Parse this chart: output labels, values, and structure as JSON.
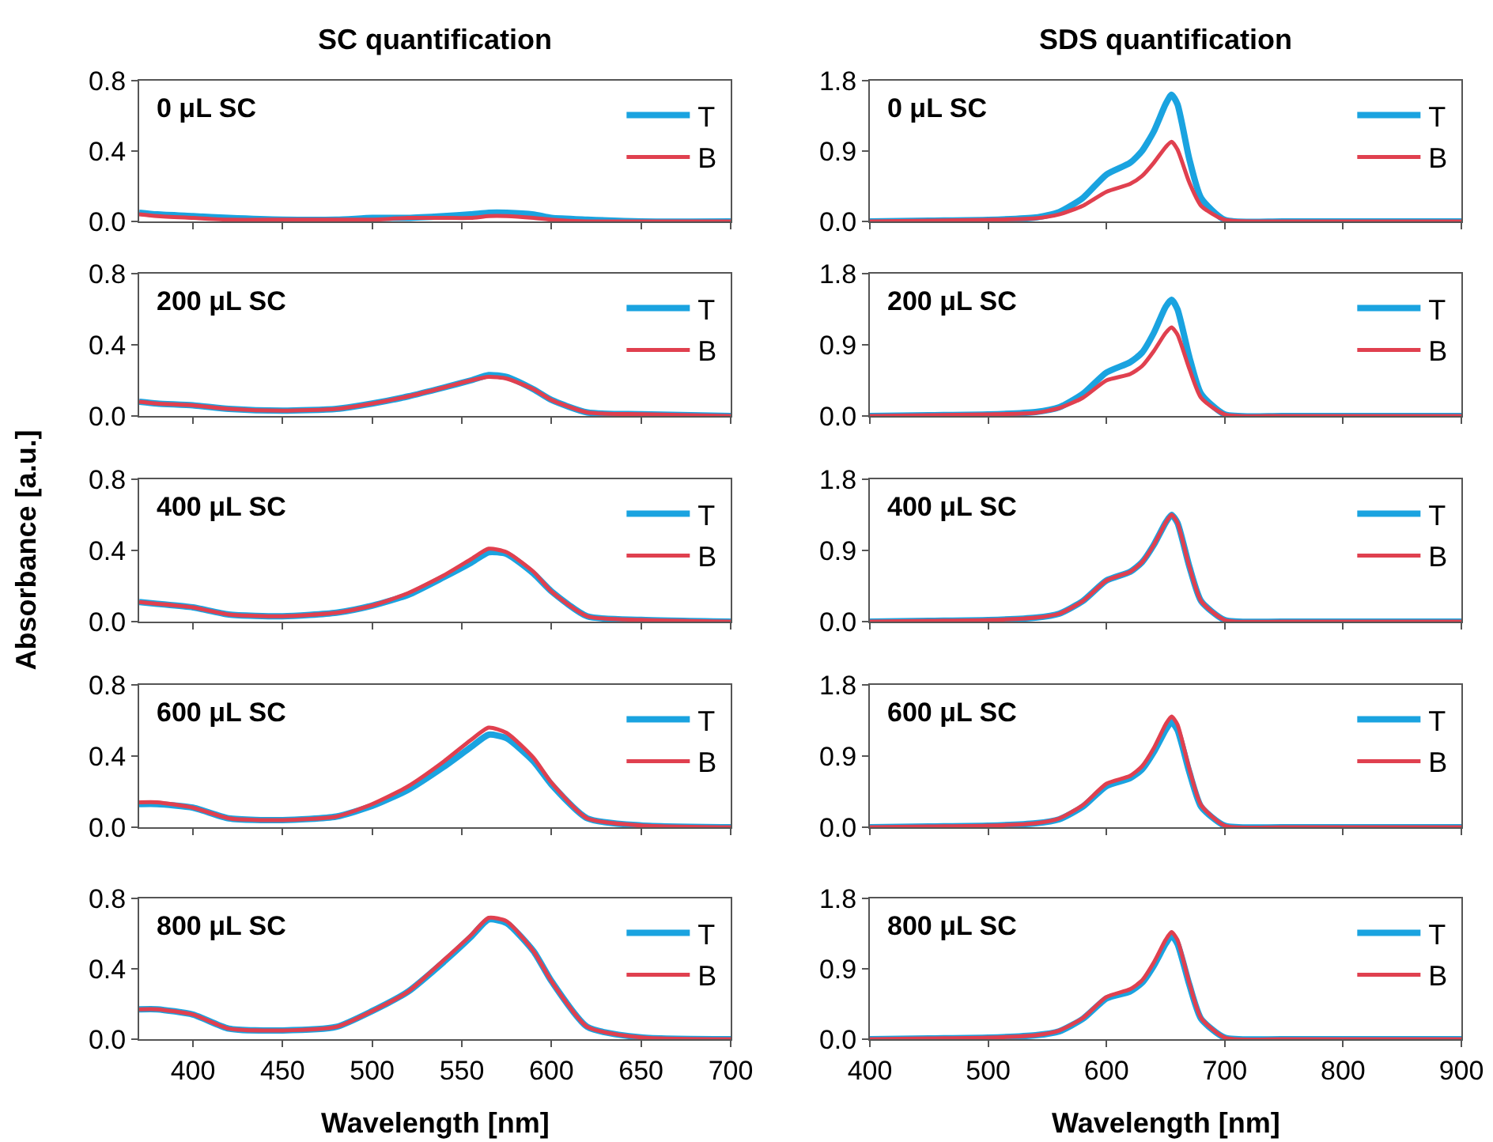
{
  "chart_data": [
    {
      "type": "line",
      "title": "SC quantification",
      "annotations": [
        "0 μL SC"
      ],
      "x": [
        370,
        380,
        400,
        420,
        450,
        480,
        500,
        520,
        540,
        555,
        565,
        575,
        590,
        600,
        620,
        650,
        700
      ],
      "xlim": [
        370,
        700
      ],
      "xticks": [
        400,
        450,
        500,
        550,
        600,
        650,
        700
      ],
      "ylim": [
        0,
        0.8
      ],
      "yticks": [
        {
          "value": 0,
          "label": "0.0"
        },
        {
          "value": 0.4,
          "label": "0.4"
        },
        {
          "value": 0.8,
          "label": "0.8"
        }
      ],
      "tick_labels": "y",
      "legend": "top right",
      "marker": "none",
      "series": [
        {
          "name": "T",
          "color": "#1aa3e0",
          "values": [
            0.05,
            0.04,
            0.03,
            0.02,
            0.01,
            0.01,
            0.02,
            0.02,
            0.03,
            0.04,
            0.05,
            0.05,
            0.04,
            0.02,
            0.01,
            0.0,
            0.0
          ]
        },
        {
          "name": "B",
          "color": "#e0404f",
          "values": [
            0.04,
            0.03,
            0.02,
            0.01,
            0.01,
            0.01,
            0.01,
            0.02,
            0.02,
            0.02,
            0.03,
            0.03,
            0.02,
            0.01,
            0.0,
            0.0,
            0.0
          ]
        }
      ]
    },
    {
      "type": "line",
      "title": "SDS quantification",
      "annotations": [
        "0 μL SC"
      ],
      "x": [
        400,
        450,
        500,
        540,
        560,
        580,
        600,
        620,
        630,
        640,
        650,
        655,
        660,
        670,
        680,
        700,
        750,
        900
      ],
      "xlim": [
        400,
        900
      ],
      "xticks": [
        400,
        500,
        600,
        700,
        800,
        900
      ],
      "ylim": [
        0,
        1.8
      ],
      "yticks": [
        {
          "value": 0,
          "label": "0.0"
        },
        {
          "value": 0.9,
          "label": "0.9"
        },
        {
          "value": 1.8,
          "label": "1.8"
        }
      ],
      "tick_labels": "y",
      "legend": "top right",
      "marker": "none",
      "series": [
        {
          "name": "T",
          "color": "#1aa3e0",
          "values": [
            0,
            0.01,
            0.02,
            0.05,
            0.12,
            0.3,
            0.6,
            0.75,
            0.9,
            1.15,
            1.5,
            1.62,
            1.5,
            0.8,
            0.3,
            0.02,
            0,
            0
          ]
        },
        {
          "name": "B",
          "color": "#e0404f",
          "values": [
            0,
            0.01,
            0.02,
            0.04,
            0.09,
            0.2,
            0.38,
            0.48,
            0.58,
            0.75,
            0.95,
            1.02,
            0.92,
            0.5,
            0.2,
            0.02,
            0,
            0
          ]
        }
      ]
    },
    {
      "type": "line",
      "annotations": [
        "200 μL SC"
      ],
      "x": [
        370,
        380,
        400,
        420,
        450,
        480,
        500,
        520,
        540,
        555,
        565,
        575,
        590,
        600,
        620,
        650,
        700
      ],
      "xlim": [
        370,
        700
      ],
      "xticks": [
        400,
        450,
        500,
        550,
        600,
        650,
        700
      ],
      "ylim": [
        0,
        0.8
      ],
      "yticks": [
        {
          "value": 0,
          "label": "0.0"
        },
        {
          "value": 0.4,
          "label": "0.4"
        },
        {
          "value": 0.8,
          "label": "0.8"
        }
      ],
      "tick_labels": "y",
      "legend": "top right",
      "marker": "none",
      "series": [
        {
          "name": "T",
          "color": "#1aa3e0",
          "values": [
            0.08,
            0.07,
            0.06,
            0.04,
            0.03,
            0.04,
            0.07,
            0.11,
            0.16,
            0.2,
            0.23,
            0.22,
            0.15,
            0.09,
            0.02,
            0.01,
            0
          ]
        },
        {
          "name": "B",
          "color": "#e0404f",
          "values": [
            0.08,
            0.07,
            0.06,
            0.04,
            0.03,
            0.04,
            0.07,
            0.11,
            0.16,
            0.2,
            0.22,
            0.21,
            0.15,
            0.09,
            0.02,
            0.01,
            0
          ]
        }
      ]
    },
    {
      "type": "line",
      "annotations": [
        "200 μL SC"
      ],
      "x": [
        400,
        450,
        500,
        540,
        560,
        580,
        600,
        620,
        630,
        640,
        650,
        655,
        660,
        670,
        680,
        700,
        750,
        900
      ],
      "xlim": [
        400,
        900
      ],
      "xticks": [
        400,
        500,
        600,
        700,
        800,
        900
      ],
      "ylim": [
        0,
        1.8
      ],
      "yticks": [
        {
          "value": 0,
          "label": "0.0"
        },
        {
          "value": 0.9,
          "label": "0.9"
        },
        {
          "value": 1.8,
          "label": "1.8"
        }
      ],
      "tick_labels": "y",
      "legend": "top right",
      "marker": "none",
      "series": [
        {
          "name": "T",
          "color": "#1aa3e0",
          "values": [
            0,
            0.01,
            0.02,
            0.05,
            0.11,
            0.28,
            0.55,
            0.68,
            0.8,
            1.05,
            1.38,
            1.47,
            1.35,
            0.75,
            0.28,
            0.02,
            0,
            0
          ]
        },
        {
          "name": "B",
          "color": "#e0404f",
          "values": [
            0,
            0.01,
            0.02,
            0.04,
            0.1,
            0.23,
            0.45,
            0.53,
            0.63,
            0.82,
            1.05,
            1.12,
            1.03,
            0.6,
            0.23,
            0.02,
            0,
            0
          ]
        }
      ]
    },
    {
      "type": "line",
      "annotations": [
        "400 μL SC"
      ],
      "ylabel": "Absorbance [a.u.]",
      "x": [
        370,
        380,
        400,
        420,
        450,
        480,
        500,
        520,
        540,
        555,
        565,
        575,
        590,
        600,
        620,
        650,
        700
      ],
      "xlim": [
        370,
        700
      ],
      "xticks": [
        400,
        450,
        500,
        550,
        600,
        650,
        700
      ],
      "ylim": [
        0,
        0.8
      ],
      "yticks": [
        {
          "value": 0,
          "label": "0.0"
        },
        {
          "value": 0.4,
          "label": "0.4"
        },
        {
          "value": 0.8,
          "label": "0.8"
        }
      ],
      "tick_labels": "y",
      "legend": "top right",
      "marker": "none",
      "series": [
        {
          "name": "T",
          "color": "#1aa3e0",
          "values": [
            0.11,
            0.1,
            0.08,
            0.04,
            0.03,
            0.05,
            0.09,
            0.15,
            0.25,
            0.33,
            0.39,
            0.38,
            0.27,
            0.17,
            0.03,
            0.01,
            0
          ]
        },
        {
          "name": "B",
          "color": "#e0404f",
          "values": [
            0.11,
            0.1,
            0.08,
            0.04,
            0.03,
            0.05,
            0.09,
            0.16,
            0.26,
            0.35,
            0.41,
            0.39,
            0.28,
            0.17,
            0.03,
            0.01,
            0
          ]
        }
      ]
    },
    {
      "type": "line",
      "annotations": [
        "400 μL SC"
      ],
      "x": [
        400,
        450,
        500,
        540,
        560,
        580,
        600,
        620,
        630,
        640,
        650,
        655,
        660,
        670,
        680,
        700,
        750,
        900
      ],
      "xlim": [
        400,
        900
      ],
      "xticks": [
        400,
        500,
        600,
        700,
        800,
        900
      ],
      "ylim": [
        0,
        1.8
      ],
      "yticks": [
        {
          "value": 0,
          "label": "0.0"
        },
        {
          "value": 0.9,
          "label": "0.9"
        },
        {
          "value": 1.8,
          "label": "1.8"
        }
      ],
      "tick_labels": "y",
      "legend": "top right",
      "marker": "none",
      "series": [
        {
          "name": "T",
          "color": "#1aa3e0",
          "values": [
            0,
            0.01,
            0.02,
            0.05,
            0.1,
            0.26,
            0.52,
            0.63,
            0.75,
            0.97,
            1.25,
            1.35,
            1.25,
            0.7,
            0.26,
            0.02,
            0,
            0
          ]
        },
        {
          "name": "B",
          "color": "#e0404f",
          "values": [
            0,
            0.01,
            0.02,
            0.05,
            0.1,
            0.26,
            0.52,
            0.63,
            0.75,
            0.97,
            1.25,
            1.35,
            1.25,
            0.7,
            0.26,
            0.02,
            0,
            0
          ]
        }
      ]
    },
    {
      "type": "line",
      "annotations": [
        "600 μL SC"
      ],
      "x": [
        370,
        380,
        400,
        420,
        450,
        480,
        500,
        520,
        540,
        555,
        565,
        575,
        590,
        600,
        620,
        650,
        700
      ],
      "xlim": [
        370,
        700
      ],
      "xticks": [
        400,
        450,
        500,
        550,
        600,
        650,
        700
      ],
      "ylim": [
        0,
        0.8
      ],
      "yticks": [
        {
          "value": 0,
          "label": "0.0"
        },
        {
          "value": 0.4,
          "label": "0.4"
        },
        {
          "value": 0.8,
          "label": "0.8"
        }
      ],
      "tick_labels": "y",
      "legend": "top right",
      "marker": "none",
      "series": [
        {
          "name": "T",
          "color": "#1aa3e0",
          "values": [
            0.13,
            0.13,
            0.11,
            0.05,
            0.04,
            0.06,
            0.12,
            0.21,
            0.34,
            0.45,
            0.52,
            0.5,
            0.37,
            0.24,
            0.05,
            0.01,
            0
          ]
        },
        {
          "name": "B",
          "color": "#e0404f",
          "values": [
            0.14,
            0.14,
            0.11,
            0.05,
            0.04,
            0.06,
            0.13,
            0.23,
            0.37,
            0.49,
            0.56,
            0.53,
            0.39,
            0.25,
            0.05,
            0.01,
            0
          ]
        }
      ]
    },
    {
      "type": "line",
      "annotations": [
        "600 μL SC"
      ],
      "x": [
        400,
        450,
        500,
        540,
        560,
        580,
        600,
        620,
        630,
        640,
        650,
        655,
        660,
        670,
        680,
        700,
        750,
        900
      ],
      "xlim": [
        400,
        900
      ],
      "xticks": [
        400,
        500,
        600,
        700,
        800,
        900
      ],
      "ylim": [
        0,
        1.8
      ],
      "yticks": [
        {
          "value": 0,
          "label": "0.0"
        },
        {
          "value": 0.9,
          "label": "0.9"
        },
        {
          "value": 1.8,
          "label": "1.8"
        }
      ],
      "tick_labels": "y",
      "legend": "top right",
      "marker": "none",
      "series": [
        {
          "name": "T",
          "color": "#1aa3e0",
          "values": [
            0,
            0.01,
            0.02,
            0.05,
            0.1,
            0.26,
            0.52,
            0.62,
            0.73,
            0.95,
            1.23,
            1.33,
            1.23,
            0.7,
            0.26,
            0.02,
            0,
            0
          ]
        },
        {
          "name": "B",
          "color": "#e0404f",
          "values": [
            0,
            0.01,
            0.02,
            0.05,
            0.11,
            0.28,
            0.55,
            0.65,
            0.77,
            1.0,
            1.3,
            1.4,
            1.3,
            0.74,
            0.28,
            0.02,
            0,
            0
          ]
        }
      ]
    },
    {
      "type": "line",
      "annotations": [
        "800 μL SC"
      ],
      "xlabel": "Wavelength [nm]",
      "x": [
        370,
        380,
        400,
        420,
        450,
        480,
        500,
        520,
        540,
        555,
        565,
        575,
        590,
        600,
        620,
        650,
        700
      ],
      "xlim": [
        370,
        700
      ],
      "xticks": [
        400,
        450,
        500,
        550,
        600,
        650,
        700
      ],
      "ylim": [
        0,
        0.8
      ],
      "yticks": [
        {
          "value": 0,
          "label": "0.0"
        },
        {
          "value": 0.4,
          "label": "0.4"
        },
        {
          "value": 0.8,
          "label": "0.8"
        }
      ],
      "legend": "top right",
      "marker": "none",
      "series": [
        {
          "name": "T",
          "color": "#1aa3e0",
          "values": [
            0.17,
            0.17,
            0.14,
            0.06,
            0.05,
            0.07,
            0.16,
            0.27,
            0.44,
            0.58,
            0.68,
            0.66,
            0.5,
            0.33,
            0.07,
            0.01,
            0
          ]
        },
        {
          "name": "B",
          "color": "#e0404f",
          "values": [
            0.17,
            0.17,
            0.14,
            0.06,
            0.05,
            0.07,
            0.16,
            0.27,
            0.45,
            0.59,
            0.69,
            0.67,
            0.5,
            0.33,
            0.07,
            0.01,
            0
          ]
        }
      ]
    },
    {
      "type": "line",
      "annotations": [
        "800 μL SC"
      ],
      "xlabel": "Wavelength [nm]",
      "x": [
        400,
        450,
        500,
        540,
        560,
        580,
        600,
        620,
        630,
        640,
        650,
        655,
        660,
        670,
        680,
        700,
        750,
        900
      ],
      "xlim": [
        400,
        900
      ],
      "xticks": [
        400,
        500,
        600,
        700,
        800,
        900
      ],
      "ylim": [
        0,
        1.8
      ],
      "yticks": [
        {
          "value": 0,
          "label": "0.0"
        },
        {
          "value": 0.9,
          "label": "0.9"
        },
        {
          "value": 1.8,
          "label": "1.8"
        }
      ],
      "legend": "top right",
      "marker": "none",
      "series": [
        {
          "name": "T",
          "color": "#1aa3e0",
          "values": [
            0,
            0.01,
            0.02,
            0.05,
            0.1,
            0.26,
            0.52,
            0.61,
            0.72,
            0.94,
            1.22,
            1.32,
            1.22,
            0.7,
            0.26,
            0.02,
            0,
            0
          ]
        },
        {
          "name": "B",
          "color": "#e0404f",
          "values": [
            0,
            0.01,
            0.02,
            0.05,
            0.11,
            0.27,
            0.54,
            0.64,
            0.75,
            0.98,
            1.27,
            1.37,
            1.27,
            0.72,
            0.27,
            0.02,
            0,
            0
          ]
        }
      ]
    }
  ]
}
